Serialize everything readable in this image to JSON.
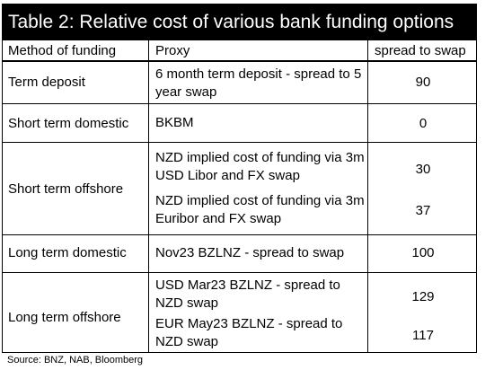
{
  "table": {
    "title": "Table 2: Relative cost of various bank funding options",
    "headers": {
      "method": "Method of funding",
      "proxy": "Proxy",
      "spread": "spread to swap"
    },
    "rows": [
      {
        "method": "Term deposit",
        "proxies": [
          {
            "proxy": "6 month term deposit - spread to 5 year swap",
            "spread": "90"
          }
        ]
      },
      {
        "method": "Short term domestic",
        "proxies": [
          {
            "proxy": "BKBM",
            "spread": "0"
          }
        ]
      },
      {
        "method": "Short term offshore",
        "proxies": [
          {
            "proxy": "NZD implied cost of funding via 3m USD Libor and FX swap",
            "spread": "30"
          },
          {
            "proxy": "NZD implied cost of funding via 3m Euribor and FX swap",
            "spread": "37"
          }
        ]
      },
      {
        "method": "Long term domestic",
        "proxies": [
          {
            "proxy": "Nov23 BZLNZ - spread to swap",
            "spread": "100"
          }
        ]
      },
      {
        "method": "Long term offshore",
        "proxies": [
          {
            "proxy": "USD Mar23 BZLNZ - spread to NZD swap",
            "spread": "129"
          },
          {
            "proxy": "EUR May23 BZLNZ - spread to NZD swap",
            "spread": "117"
          }
        ]
      }
    ],
    "source": "Source: BNZ, NAB, Bloomberg"
  }
}
